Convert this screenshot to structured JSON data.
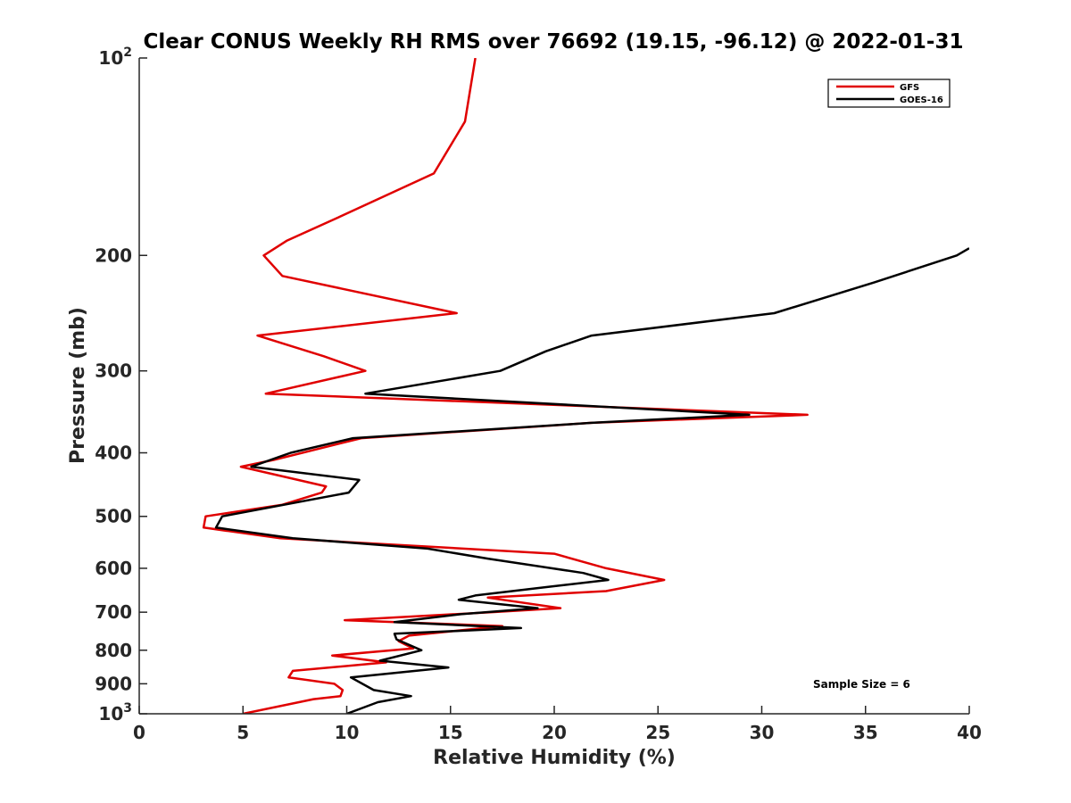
{
  "chart_data": {
    "type": "line",
    "title": "Clear CONUS Weekly RH RMS over 76692 (19.15, -96.12) @ 2022-01-31",
    "xlabel": "Relative Humidity (%)",
    "ylabel": "Pressure (mb)",
    "xlim": [
      0,
      40
    ],
    "ylim": [
      1000,
      100
    ],
    "yscale": "log",
    "yreversed": true,
    "grid": false,
    "legend_position": "top-right",
    "x_ticks": [
      0,
      5,
      10,
      15,
      20,
      25,
      30,
      35,
      40
    ],
    "x_tick_labels": [
      "0",
      "5",
      "10",
      "15",
      "20",
      "25",
      "30",
      "35",
      "40"
    ],
    "y_ticks": [
      100,
      200,
      300,
      400,
      500,
      600,
      700,
      800,
      900,
      1000
    ],
    "y_tick_labels": [
      {
        "base": "10",
        "exp": "2"
      },
      {
        "text": "200"
      },
      {
        "text": "300"
      },
      {
        "text": "400"
      },
      {
        "text": "500"
      },
      {
        "text": "600"
      },
      {
        "text": "700"
      },
      {
        "text": "800"
      },
      {
        "text": "900"
      },
      {
        "base": "10",
        "exp": "3"
      }
    ],
    "annotation": "Sample Size = 6",
    "series": [
      {
        "name": "GFS",
        "color": "#e00000",
        "points": [
          [
            16.2,
            100
          ],
          [
            15.7,
            125
          ],
          [
            14.2,
            150
          ],
          [
            9.6,
            175
          ],
          [
            7.1,
            190
          ],
          [
            6.0,
            200
          ],
          [
            6.9,
            215
          ],
          [
            15.3,
            245
          ],
          [
            5.7,
            265
          ],
          [
            8.9,
            285
          ],
          [
            10.9,
            300
          ],
          [
            6.1,
            325
          ],
          [
            32.2,
            350
          ],
          [
            21.8,
            360
          ],
          [
            10.7,
            380
          ],
          [
            6.5,
            410
          ],
          [
            4.9,
            420
          ],
          [
            9.0,
            450
          ],
          [
            8.8,
            460
          ],
          [
            6.9,
            480
          ],
          [
            3.2,
            500
          ],
          [
            3.1,
            520
          ],
          [
            6.8,
            540
          ],
          [
            20.0,
            570
          ],
          [
            22.5,
            600
          ],
          [
            25.3,
            625
          ],
          [
            22.5,
            650
          ],
          [
            16.8,
            665
          ],
          [
            20.3,
            690
          ],
          [
            17.0,
            700
          ],
          [
            9.9,
            720
          ],
          [
            17.5,
            735
          ],
          [
            13.0,
            760
          ],
          [
            12.5,
            775
          ],
          [
            13.2,
            795
          ],
          [
            9.3,
            815
          ],
          [
            11.9,
            835
          ],
          [
            7.4,
            860
          ],
          [
            7.2,
            880
          ],
          [
            9.4,
            900
          ],
          [
            9.8,
            920
          ],
          [
            9.7,
            940
          ],
          [
            8.4,
            950
          ],
          [
            5.0,
            1000
          ]
        ]
      },
      {
        "name": "GOES-16",
        "color": "#000000",
        "points": [
          [
            40.0,
            195
          ],
          [
            39.4,
            200
          ],
          [
            35.4,
            220
          ],
          [
            30.6,
            245
          ],
          [
            21.8,
            265
          ],
          [
            19.6,
            280
          ],
          [
            17.4,
            300
          ],
          [
            10.9,
            325
          ],
          [
            29.4,
            350
          ],
          [
            21.8,
            360
          ],
          [
            10.3,
            380
          ],
          [
            7.3,
            400
          ],
          [
            5.4,
            420
          ],
          [
            10.6,
            440
          ],
          [
            10.1,
            460
          ],
          [
            4.0,
            500
          ],
          [
            3.7,
            520
          ],
          [
            7.4,
            540
          ],
          [
            13.9,
            560
          ],
          [
            16.8,
            580
          ],
          [
            21.4,
            610
          ],
          [
            22.6,
            625
          ],
          [
            19.8,
            640
          ],
          [
            16.2,
            660
          ],
          [
            15.4,
            670
          ],
          [
            19.2,
            690
          ],
          [
            15.5,
            705
          ],
          [
            12.3,
            725
          ],
          [
            18.4,
            740
          ],
          [
            12.3,
            755
          ],
          [
            12.4,
            770
          ],
          [
            13.6,
            800
          ],
          [
            11.6,
            830
          ],
          [
            14.9,
            850
          ],
          [
            10.2,
            880
          ],
          [
            11.3,
            920
          ],
          [
            13.1,
            940
          ],
          [
            11.5,
            960
          ],
          [
            10.0,
            1000
          ]
        ]
      }
    ]
  }
}
